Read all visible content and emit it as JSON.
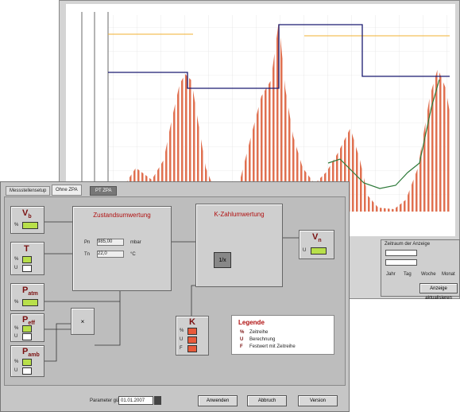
{
  "back_window": {
    "panel_title": "Zeitraum der Anzeige",
    "modes": [
      "Jahr",
      "Tag",
      "Woche",
      "Monat"
    ],
    "refresh_button": "Anzeige aktualisieren"
  },
  "tabs": [
    "Messstellensetup",
    "Ohne ZPA",
    "PT ZPA"
  ],
  "inputs": {
    "vb": {
      "symbol": "V",
      "sub": "b",
      "unit": "%"
    },
    "t": {
      "symbol": "T",
      "units": [
        "%",
        "U"
      ]
    },
    "patm": {
      "symbol": "P",
      "sub": "atm",
      "unit": "%"
    },
    "peff": {
      "symbol": "P",
      "sub": "eff",
      "units": [
        "%",
        "U"
      ]
    },
    "pamb": {
      "symbol": "P",
      "sub": "amb",
      "units": [
        "%",
        "U"
      ]
    }
  },
  "zustand": {
    "title": "Zustandsumwertung",
    "rows": [
      {
        "label": "Pn",
        "value": "985,00",
        "unit": "mbar"
      },
      {
        "label": "Tn",
        "value": "22,0",
        "unit": "°C"
      }
    ]
  },
  "kzahl": {
    "title": "K-Zahlumwertung",
    "op": "1/x"
  },
  "mult": {
    "op": "×"
  },
  "output": {
    "symbol": "V",
    "sub": "n",
    "unit": "U"
  },
  "k": {
    "symbol": "K",
    "units": [
      "%",
      "U",
      "F"
    ]
  },
  "legend": {
    "title": "Legende",
    "items": [
      {
        "key": "%",
        "text": "Zeitreihe"
      },
      {
        "key": "U",
        "text": "Berechnung"
      },
      {
        "key": "F",
        "text": "Festwert mit Zeitreihe"
      }
    ]
  },
  "footer": {
    "label": "Parameter gültig ab",
    "date": "01.01.2007",
    "buttons": [
      "Anwenden",
      "Abbruch",
      "Version"
    ]
  }
}
